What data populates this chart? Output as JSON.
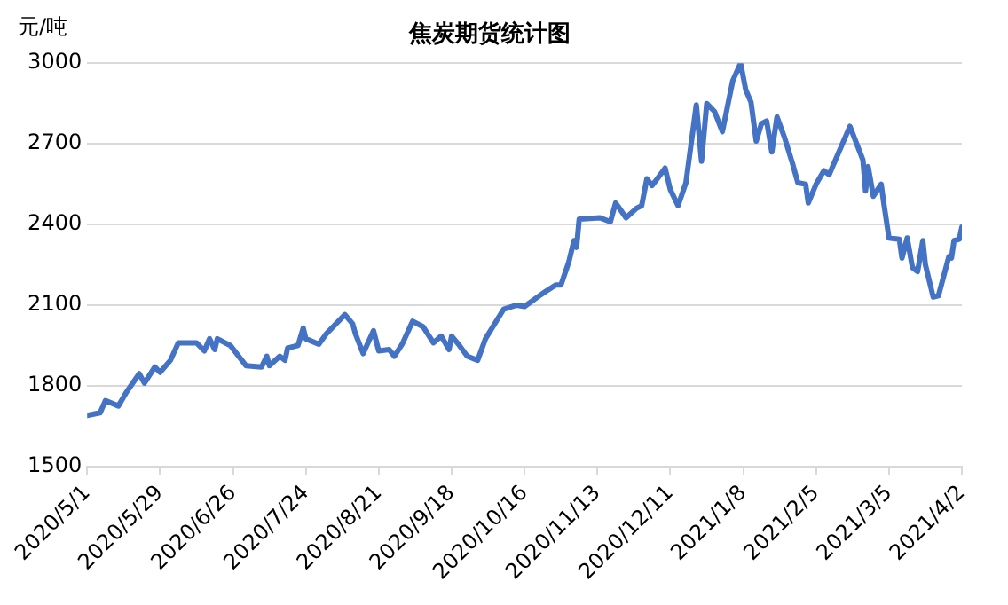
{
  "chart_data": {
    "type": "line",
    "title": "焦炭期货统计图",
    "ylabel": "元/吨",
    "x": [
      "2020-05-01",
      "2020-05-06",
      "2020-05-08",
      "2020-05-13",
      "2020-05-16",
      "2020-05-21",
      "2020-05-23",
      "2020-05-27",
      "2020-05-29",
      "2020-06-02",
      "2020-06-05",
      "2020-06-12",
      "2020-06-15",
      "2020-06-17",
      "2020-06-19",
      "2020-06-20",
      "2020-06-25",
      "2020-07-01",
      "2020-07-07",
      "2020-07-09",
      "2020-07-10",
      "2020-07-14",
      "2020-07-16",
      "2020-07-17",
      "2020-07-21",
      "2020-07-23",
      "2020-07-24",
      "2020-07-29",
      "2020-08-01",
      "2020-08-08",
      "2020-08-11",
      "2020-08-12",
      "2020-08-15",
      "2020-08-19",
      "2020-08-21",
      "2020-08-25",
      "2020-08-27",
      "2020-08-30",
      "2020-09-03",
      "2020-09-07",
      "2020-09-11",
      "2020-09-14",
      "2020-09-17",
      "2020-09-18",
      "2020-09-21",
      "2020-09-24",
      "2020-09-28",
      "2020-10-01",
      "2020-10-08",
      "2020-10-13",
      "2020-10-16",
      "2020-10-21",
      "2020-10-24",
      "2020-10-28",
      "2020-10-30",
      "2020-11-02",
      "2020-11-04",
      "2020-11-05",
      "2020-11-06",
      "2020-11-14",
      "2020-11-18",
      "2020-11-20",
      "2020-11-24",
      "2020-11-28",
      "2020-11-30",
      "2020-12-02",
      "2020-12-04",
      "2020-12-06",
      "2020-12-09",
      "2020-12-11",
      "2020-12-14",
      "2020-12-17",
      "2020-12-21",
      "2020-12-23",
      "2020-12-25",
      "2020-12-28",
      "2020-12-31",
      "2021-01-04",
      "2021-01-07",
      "2021-01-09",
      "2021-01-11",
      "2021-01-13",
      "2021-01-15",
      "2021-01-17",
      "2021-01-19",
      "2021-01-21",
      "2021-01-24",
      "2021-01-27",
      "2021-01-29",
      "2021-02-01",
      "2021-02-02",
      "2021-02-05",
      "2021-02-08",
      "2021-02-10",
      "2021-02-18",
      "2021-02-23",
      "2021-02-24",
      "2021-02-25",
      "2021-02-27",
      "2021-03-02",
      "2021-03-03",
      "2021-03-05",
      "2021-03-09",
      "2021-03-10",
      "2021-03-12",
      "2021-03-14",
      "2021-03-16",
      "2021-03-18",
      "2021-03-19",
      "2021-03-22",
      "2021-03-24",
      "2021-03-28",
      "2021-03-29",
      "2021-03-30",
      "2021-04-01",
      "2021-04-02"
    ],
    "series": [
      {
        "color": "#4472c4",
        "values": [
          1690,
          1700,
          1745,
          1725,
          1775,
          1845,
          1810,
          1870,
          1850,
          1895,
          1960,
          1960,
          1930,
          1975,
          1935,
          1975,
          1950,
          1875,
          1870,
          1910,
          1875,
          1910,
          1895,
          1940,
          1950,
          2015,
          1975,
          1955,
          1995,
          2065,
          2030,
          1995,
          1920,
          2005,
          1930,
          1935,
          1910,
          1955,
          2040,
          2020,
          1960,
          1985,
          1935,
          1985,
          1950,
          1910,
          1895,
          1975,
          2085,
          2100,
          2095,
          2130,
          2150,
          2175,
          2175,
          2260,
          2340,
          2315,
          2420,
          2425,
          2410,
          2480,
          2425,
          2460,
          2470,
          2570,
          2545,
          2570,
          2610,
          2530,
          2470,
          2555,
          2845,
          2635,
          2850,
          2820,
          2745,
          2935,
          3000,
          2900,
          2855,
          2710,
          2775,
          2785,
          2670,
          2800,
          2720,
          2625,
          2555,
          2550,
          2480,
          2550,
          2600,
          2585,
          2765,
          2640,
          2525,
          2615,
          2505,
          2550,
          2480,
          2350,
          2345,
          2275,
          2350,
          2240,
          2225,
          2340,
          2250,
          2130,
          2135,
          2280,
          2275,
          2340,
          2345,
          2390
        ]
      }
    ],
    "xlim": [
      "2020-05-01",
      "2021-04-02"
    ],
    "xticks": [
      {
        "value": "2020-05-01",
        "label": "2020/5/1"
      },
      {
        "value": "2020-05-29",
        "label": "2020/5/29"
      },
      {
        "value": "2020-06-26",
        "label": "2020/6/26"
      },
      {
        "value": "2020-07-24",
        "label": "2020/7/24"
      },
      {
        "value": "2020-08-21",
        "label": "2020/8/21"
      },
      {
        "value": "2020-09-18",
        "label": "2020/9/18"
      },
      {
        "value": "2020-10-16",
        "label": "2020/10/16"
      },
      {
        "value": "2020-11-13",
        "label": "2020/11/13"
      },
      {
        "value": "2020-12-11",
        "label": "2020/12/11"
      },
      {
        "value": "2021-01-08",
        "label": "2021/1/8"
      },
      {
        "value": "2021-02-05",
        "label": "2021/2/5"
      },
      {
        "value": "2021-03-05",
        "label": "2021/3/5"
      },
      {
        "value": "2021-04-02",
        "label": "2021/4/2"
      }
    ],
    "ylim": [
      1500,
      3000
    ],
    "yticks": [
      1500,
      1800,
      2100,
      2400,
      2700,
      3000
    ],
    "grid": "y",
    "legend": false,
    "marker": "none",
    "line_style": "solid"
  }
}
